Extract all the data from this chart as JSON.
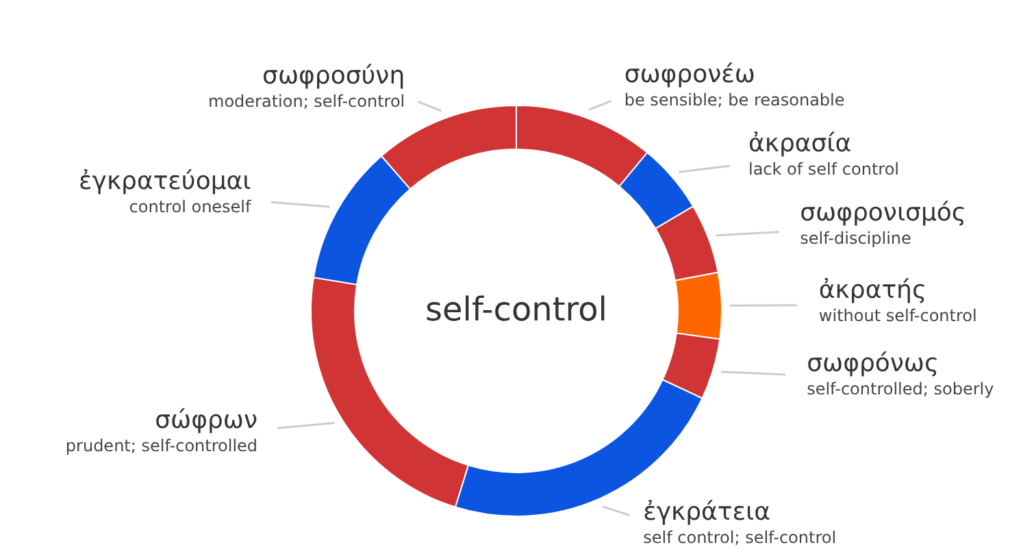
{
  "chart_data": {
    "type": "donut",
    "title": "self-control",
    "categories": [
      "σωφρονέω",
      "ἀκρασία",
      "σωφρονισμός",
      "ἀκρατής",
      "σωφρόνως",
      "ἐγκράτεια",
      "σώφρων",
      "ἐγκρατεύομαι",
      "σωφροσύνη"
    ],
    "values": [
      11,
      5.5,
      5.5,
      5.2,
      4.8,
      22.8,
      22.8,
      11,
      11.4
    ],
    "colors": [
      "#d03434",
      "#0b55e0",
      "#d03434",
      "#ff6600",
      "#d03434",
      "#0b55e0",
      "#d03434",
      "#0b55e0",
      "#d03434"
    ],
    "annotations": [
      "be sensible; be reasonable",
      "lack of self control",
      "self-discipline",
      "without self-control",
      "self-controlled; soberly",
      "self control; self-control",
      "prudent; self-controlled",
      "control oneself",
      "moderation; self-control"
    ]
  }
}
